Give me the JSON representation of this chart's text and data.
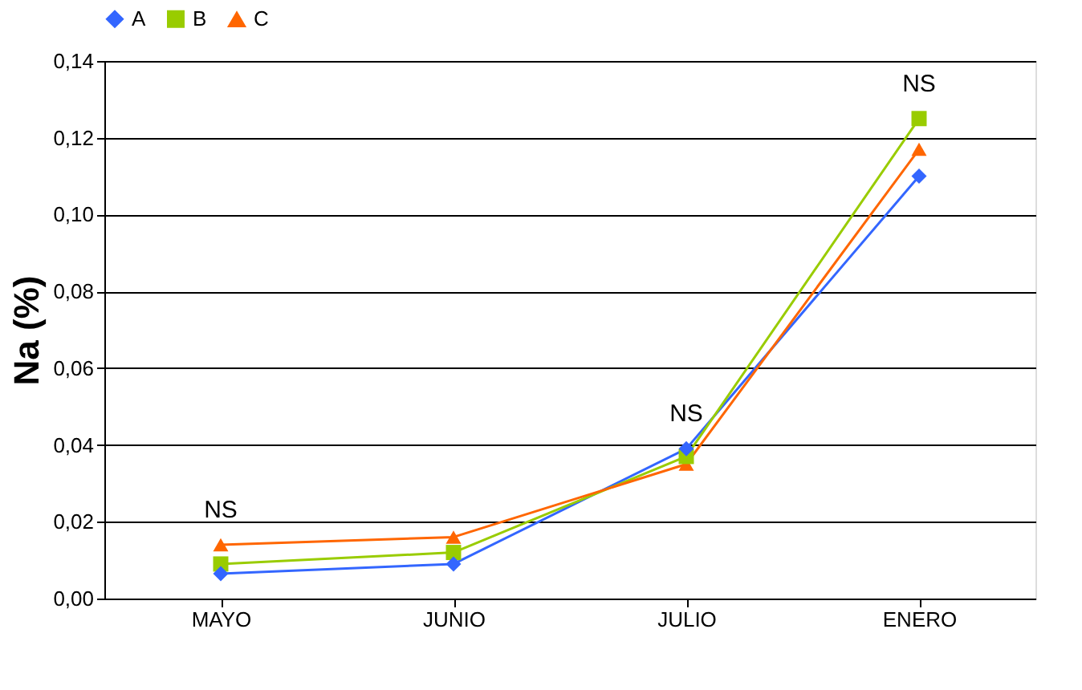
{
  "chart_data": {
    "type": "line",
    "ylabel": "Na (%)",
    "categories": [
      "MAYO",
      "JUNIO",
      "JULIO",
      "ENERO"
    ],
    "ylim": [
      0,
      0.14
    ],
    "yticks": [
      {
        "value": 0,
        "label": "0,00"
      },
      {
        "value": 0.02,
        "label": "0,02"
      },
      {
        "value": 0.04,
        "label": "0,04"
      },
      {
        "value": 0.06,
        "label": "0,06"
      },
      {
        "value": 0.08,
        "label": "0,08"
      },
      {
        "value": 0.1,
        "label": "0,10"
      },
      {
        "value": 0.12,
        "label": "0,12"
      },
      {
        "value": 0.14,
        "label": "0,14"
      }
    ],
    "series": [
      {
        "name": "A",
        "color": "#3366ff",
        "marker": "diamond",
        "values": [
          0.0065,
          0.009,
          0.039,
          0.11
        ]
      },
      {
        "name": "B",
        "color": "#99cc00",
        "marker": "square",
        "values": [
          0.009,
          0.012,
          0.037,
          0.125
        ]
      },
      {
        "name": "C",
        "color": "#ff6600",
        "marker": "triangle",
        "values": [
          0.014,
          0.016,
          0.035,
          0.117
        ]
      }
    ],
    "annotations": [
      "NS",
      "NS",
      "NS"
    ],
    "grid": "y",
    "legend": "top",
    "line_style": "solid"
  }
}
